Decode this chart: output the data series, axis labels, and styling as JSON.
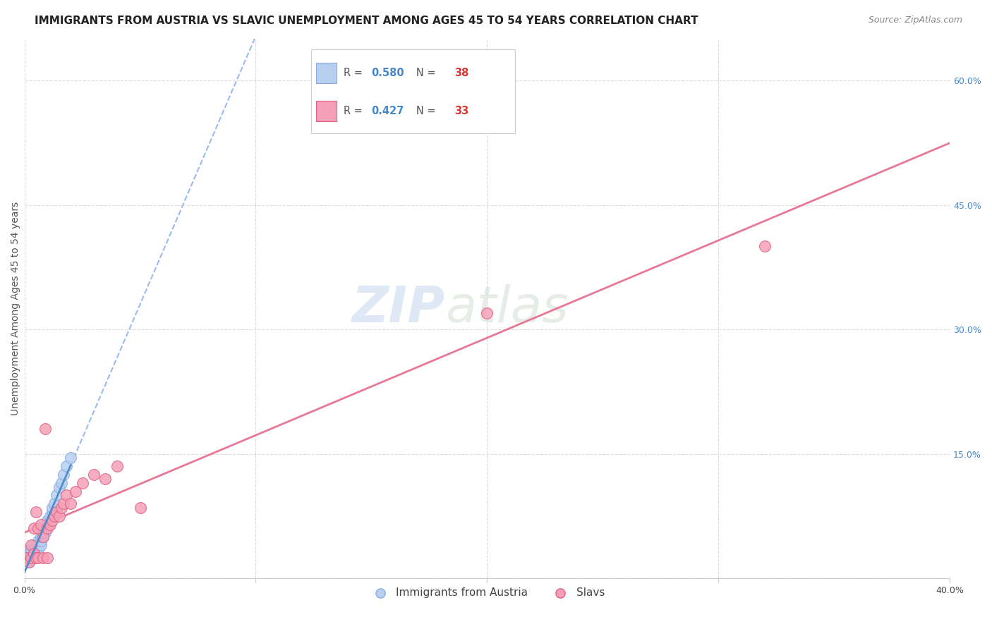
{
  "title": "IMMIGRANTS FROM AUSTRIA VS SLAVIC UNEMPLOYMENT AMONG AGES 45 TO 54 YEARS CORRELATION CHART",
  "source": "Source: ZipAtlas.com",
  "ylabel": "Unemployment Among Ages 45 to 54 years",
  "xlim": [
    0.0,
    0.4
  ],
  "ylim": [
    0.0,
    0.65
  ],
  "xticks": [
    0.0,
    0.1,
    0.2,
    0.3,
    0.4
  ],
  "xticklabels": [
    "0.0%",
    "",
    "",
    "",
    "40.0%"
  ],
  "yticks_right": [
    0.0,
    0.15,
    0.3,
    0.45,
    0.6
  ],
  "yticklabels_right": [
    "",
    "15.0%",
    "30.0%",
    "45.0%",
    "60.0%"
  ],
  "grid_color": "#dddddd",
  "background_color": "#ffffff",
  "watermark_zip": "ZIP",
  "watermark_atlas": "atlas",
  "austria_x": [
    0.001,
    0.001,
    0.002,
    0.002,
    0.002,
    0.003,
    0.003,
    0.003,
    0.004,
    0.004,
    0.004,
    0.004,
    0.005,
    0.005,
    0.005,
    0.006,
    0.006,
    0.006,
    0.007,
    0.007,
    0.007,
    0.008,
    0.008,
    0.009,
    0.009,
    0.01,
    0.01,
    0.011,
    0.011,
    0.012,
    0.012,
    0.013,
    0.014,
    0.015,
    0.016,
    0.017,
    0.018,
    0.02
  ],
  "austria_y": [
    0.03,
    0.025,
    0.02,
    0.035,
    0.03,
    0.025,
    0.03,
    0.035,
    0.025,
    0.03,
    0.035,
    0.04,
    0.03,
    0.035,
    0.04,
    0.035,
    0.04,
    0.045,
    0.04,
    0.045,
    0.05,
    0.05,
    0.055,
    0.055,
    0.06,
    0.065,
    0.07,
    0.07,
    0.075,
    0.08,
    0.085,
    0.09,
    0.1,
    0.11,
    0.115,
    0.125,
    0.135,
    0.145
  ],
  "austria_color": "#b8d0f0",
  "austria_edgecolor": "#88aae0",
  "austria_label": "Immigrants from Austria",
  "austria_R": "0.580",
  "austria_N": "38",
  "austria_line_color": "#99bbee",
  "austria_line_dash": "--",
  "austria_solid_color": "#4488cc",
  "slavs_x": [
    0.001,
    0.002,
    0.003,
    0.003,
    0.004,
    0.004,
    0.005,
    0.005,
    0.006,
    0.006,
    0.007,
    0.008,
    0.008,
    0.009,
    0.01,
    0.01,
    0.011,
    0.012,
    0.013,
    0.014,
    0.015,
    0.016,
    0.017,
    0.018,
    0.02,
    0.022,
    0.025,
    0.03,
    0.035,
    0.04,
    0.05,
    0.2,
    0.32
  ],
  "slavs_y": [
    0.025,
    0.02,
    0.025,
    0.04,
    0.03,
    0.06,
    0.025,
    0.08,
    0.06,
    0.025,
    0.065,
    0.025,
    0.05,
    0.18,
    0.06,
    0.025,
    0.065,
    0.07,
    0.075,
    0.08,
    0.075,
    0.085,
    0.09,
    0.1,
    0.09,
    0.105,
    0.115,
    0.125,
    0.12,
    0.135,
    0.085,
    0.32,
    0.4
  ],
  "slavs_color": "#f5a0b8",
  "slavs_edgecolor": "#e06080",
  "slavs_label": "Slavs",
  "slavs_R": "0.427",
  "slavs_N": "33",
  "slavs_line_color": "#e87090",
  "title_fontsize": 11,
  "axis_label_fontsize": 10,
  "tick_fontsize": 9,
  "source_fontsize": 9,
  "watermark_fontsize_zip": 52,
  "watermark_fontsize_atlas": 52
}
